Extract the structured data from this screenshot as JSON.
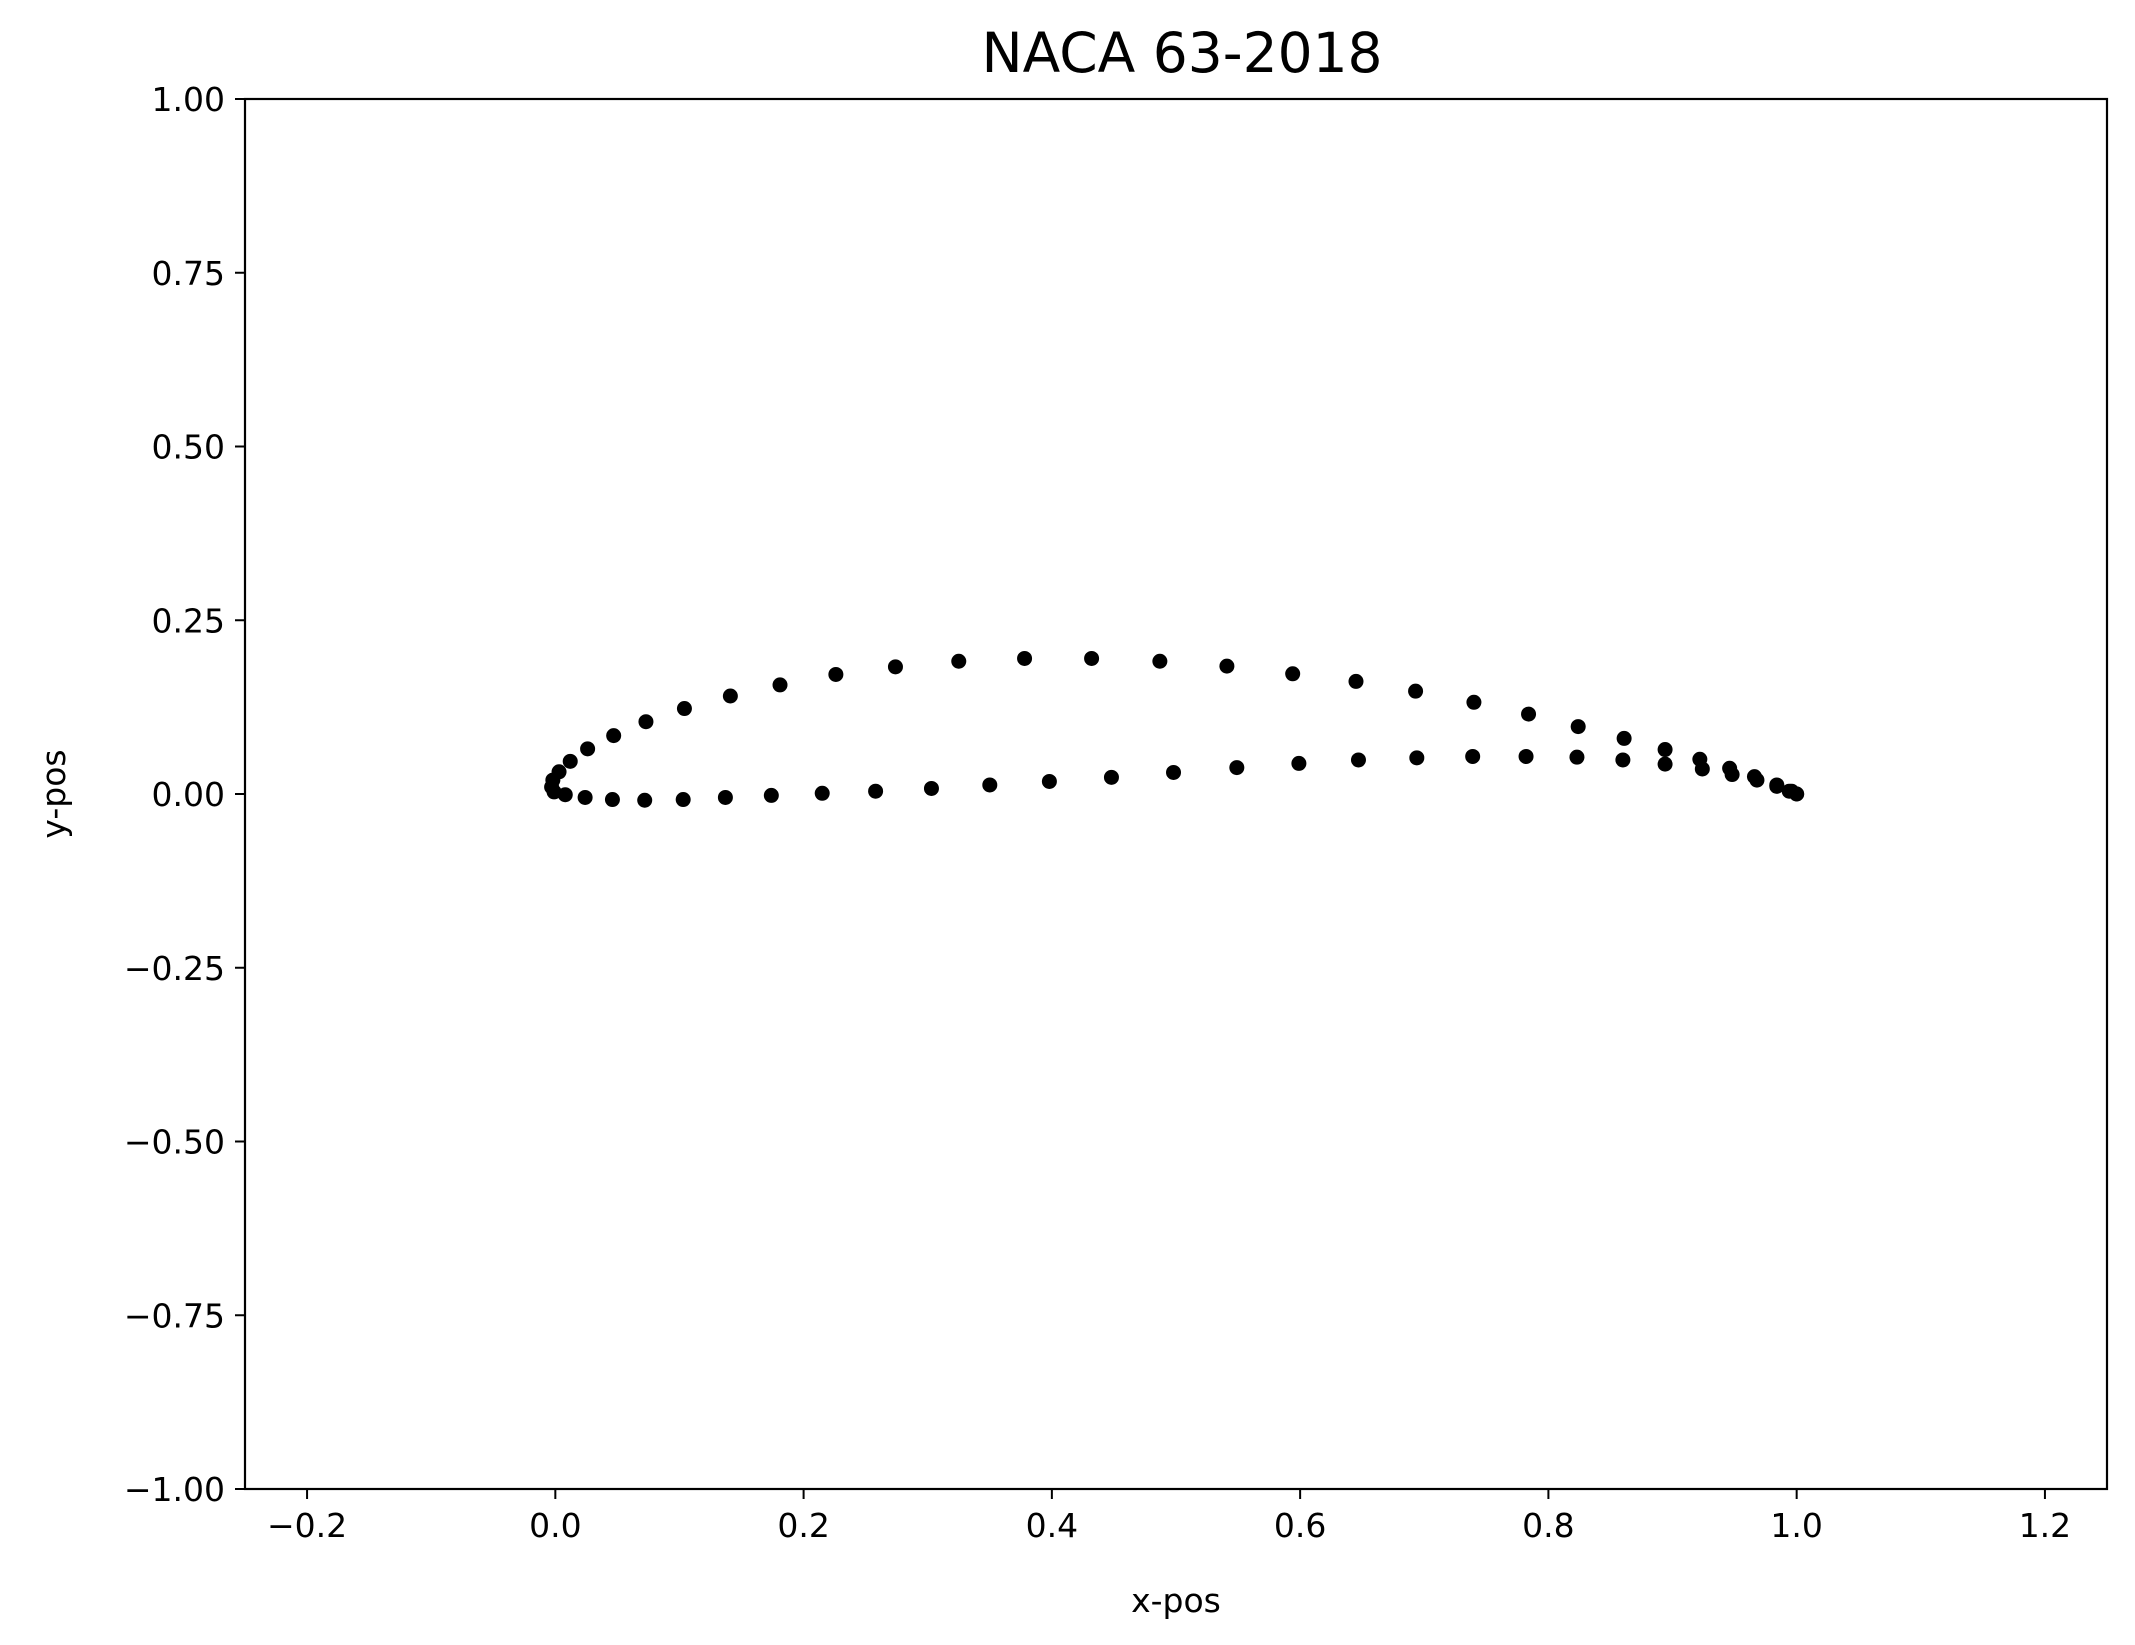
{
  "chart_data": {
    "type": "scatter",
    "title": "NACA 63-2018",
    "xlabel": "x-pos",
    "ylabel": "y-pos",
    "xlim": [
      -0.25,
      1.25
    ],
    "ylim": [
      -1.0,
      1.0
    ],
    "x_ticks": [
      -0.2,
      0.0,
      0.2,
      0.4,
      0.6,
      0.8,
      1.0,
      1.2
    ],
    "x_tick_labels": [
      "−0.2",
      "0.0",
      "0.2",
      "0.4",
      "0.6",
      "0.8",
      "1.0",
      "1.2"
    ],
    "y_ticks": [
      -1.0,
      -0.75,
      -0.5,
      -0.25,
      0.0,
      0.25,
      0.5,
      0.75,
      1.0
    ],
    "y_tick_labels": [
      "−1.00",
      "−0.75",
      "−0.50",
      "−0.25",
      "0.00",
      "0.25",
      "0.50",
      "0.75",
      "1.00"
    ],
    "grid": false,
    "marker_color": "#000000",
    "points": [
      [
        1.0,
        0.0
      ],
      [
        0.996,
        0.004
      ],
      [
        0.984,
        0.013
      ],
      [
        0.966,
        0.025
      ],
      [
        0.946,
        0.037
      ],
      [
        0.922,
        0.05
      ],
      [
        0.894,
        0.064
      ],
      [
        0.861,
        0.08
      ],
      [
        0.824,
        0.097
      ],
      [
        0.784,
        0.115
      ],
      [
        0.74,
        0.132
      ],
      [
        0.693,
        0.148
      ],
      [
        0.645,
        0.162
      ],
      [
        0.594,
        0.173
      ],
      [
        0.541,
        0.184
      ],
      [
        0.487,
        0.191
      ],
      [
        0.432,
        0.195
      ],
      [
        0.378,
        0.195
      ],
      [
        0.325,
        0.191
      ],
      [
        0.274,
        0.183
      ],
      [
        0.226,
        0.172
      ],
      [
        0.181,
        0.157
      ],
      [
        0.141,
        0.141
      ],
      [
        0.104,
        0.123
      ],
      [
        0.073,
        0.104
      ],
      [
        0.047,
        0.084
      ],
      [
        0.026,
        0.065
      ],
      [
        0.012,
        0.047
      ],
      [
        0.003,
        0.032
      ],
      [
        -0.002,
        0.02
      ],
      [
        -0.003,
        0.01
      ],
      [
        -0.001,
        0.003
      ],
      [
        0.008,
        -0.001
      ],
      [
        0.024,
        -0.005
      ],
      [
        0.046,
        -0.008
      ],
      [
        0.072,
        -0.009
      ],
      [
        0.103,
        -0.008
      ],
      [
        0.137,
        -0.005
      ],
      [
        0.174,
        -0.002
      ],
      [
        0.215,
        0.001
      ],
      [
        0.258,
        0.004
      ],
      [
        0.303,
        0.008
      ],
      [
        0.35,
        0.013
      ],
      [
        0.398,
        0.018
      ],
      [
        0.448,
        0.024
      ],
      [
        0.498,
        0.031
      ],
      [
        0.549,
        0.038
      ],
      [
        0.599,
        0.044
      ],
      [
        0.647,
        0.049
      ],
      [
        0.694,
        0.052
      ],
      [
        0.739,
        0.054
      ],
      [
        0.782,
        0.054
      ],
      [
        0.823,
        0.053
      ],
      [
        0.86,
        0.049
      ],
      [
        0.894,
        0.043
      ],
      [
        0.924,
        0.036
      ],
      [
        0.948,
        0.028
      ],
      [
        0.968,
        0.02
      ],
      [
        0.984,
        0.011
      ],
      [
        0.994,
        0.004
      ],
      [
        1.0,
        0.0
      ]
    ]
  }
}
